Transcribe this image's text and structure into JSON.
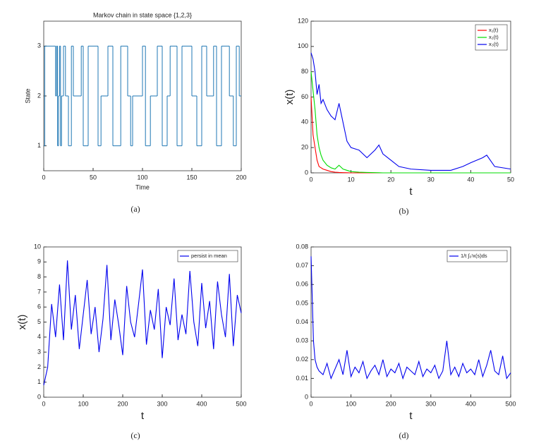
{
  "chart_data": [
    {
      "type": "line",
      "step": true,
      "title": "Markov chain in state space {1,2,3}",
      "xlabel": "Time",
      "ylabel": "State",
      "caption": "(a)",
      "x": [
        0,
        1,
        2,
        12,
        13,
        14,
        15,
        16,
        17,
        18,
        20,
        22,
        25,
        28,
        30,
        38,
        40,
        45,
        55,
        58,
        65,
        70,
        78,
        85,
        88,
        90,
        100,
        103,
        108,
        115,
        120,
        125,
        128,
        135,
        140,
        150,
        155,
        160,
        165,
        172,
        175,
        180,
        188,
        192,
        195,
        198,
        200
      ],
      "series": [
        {
          "color": "#1f77b4",
          "values": [
            1,
            3,
            3,
            2,
            3,
            1,
            2,
            3,
            1,
            2,
            3,
            2,
            1,
            3,
            2,
            3,
            1,
            3,
            1,
            2,
            3,
            1,
            3,
            2,
            1,
            2,
            3,
            1,
            2,
            3,
            1,
            2,
            3,
            1,
            3,
            2,
            1,
            3,
            2,
            3,
            1,
            3,
            2,
            1,
            3,
            2,
            2
          ]
        }
      ],
      "xlim": [
        0,
        200
      ],
      "xticks": [
        0,
        50,
        100,
        150,
        200
      ],
      "ylim": [
        0.5,
        3.5
      ],
      "yticks": [
        1,
        2,
        3
      ]
    },
    {
      "type": "line",
      "xlabel": "t",
      "ylabel": "x(t)",
      "caption": "(b)",
      "legend": "upper right",
      "x": [
        0,
        0.5,
        1,
        1.5,
        2,
        2.5,
        3,
        4,
        5,
        6,
        7,
        8,
        9,
        10,
        12,
        14,
        16,
        17,
        18,
        20,
        22,
        25,
        30,
        35,
        38,
        40,
        43,
        44,
        46,
        50
      ],
      "series": [
        {
          "name": "x₁(t)",
          "color": "#ff0000",
          "values": [
            60,
            30,
            20,
            10,
            5,
            4,
            3,
            2,
            1,
            0.5,
            0.3,
            0.2,
            0.1,
            0,
            0,
            0,
            0,
            0,
            0,
            0,
            0,
            0,
            0,
            0,
            0,
            0,
            0,
            0,
            0,
            0
          ]
        },
        {
          "name": "x₂(t)",
          "color": "#00dd00",
          "values": [
            80,
            65,
            50,
            30,
            20,
            14,
            10,
            6,
            4,
            3,
            6,
            3,
            2,
            1,
            0.5,
            0.3,
            0.2,
            0.1,
            0,
            0,
            0,
            0,
            0,
            0,
            0,
            0,
            0,
            0,
            0,
            0
          ]
        },
        {
          "name": "x₃(t)",
          "color": "#0000ee",
          "values": [
            95,
            90,
            80,
            62,
            70,
            55,
            58,
            50,
            45,
            42,
            55,
            40,
            25,
            20,
            18,
            12,
            18,
            22,
            15,
            10,
            5,
            3,
            2,
            2,
            5,
            8,
            12,
            14,
            5,
            3
          ]
        }
      ],
      "xlim": [
        0,
        50
      ],
      "xticks": [
        0,
        10,
        20,
        30,
        40,
        50
      ],
      "ylim": [
        0,
        120
      ],
      "yticks": [
        0,
        20,
        40,
        60,
        80,
        100,
        120
      ]
    },
    {
      "type": "line",
      "xlabel": "t",
      "ylabel": "x(t)",
      "caption": "(c)",
      "legend": "upper right",
      "x": [
        0,
        10,
        20,
        30,
        40,
        50,
        60,
        70,
        80,
        90,
        100,
        110,
        120,
        130,
        140,
        150,
        160,
        170,
        180,
        190,
        200,
        210,
        220,
        230,
        240,
        250,
        260,
        270,
        280,
        290,
        300,
        310,
        320,
        330,
        340,
        350,
        360,
        370,
        380,
        390,
        400,
        410,
        420,
        430,
        440,
        450,
        460,
        470,
        480,
        490,
        500
      ],
      "series": [
        {
          "name": "persist in mean",
          "color": "#0000ee",
          "values": [
            0.8,
            2,
            6.2,
            4,
            7.5,
            3.8,
            9.1,
            4.5,
            6.8,
            3.2,
            5.5,
            7.8,
            4.2,
            6,
            3,
            5.2,
            8.8,
            3.8,
            6.5,
            4.8,
            2.8,
            7.4,
            5,
            4,
            6.2,
            8.5,
            3.5,
            5.8,
            4.5,
            7.2,
            2.6,
            6,
            4.8,
            7.9,
            3.8,
            5.5,
            4.2,
            8.4,
            5,
            3.4,
            7.6,
            4.6,
            6.4,
            3.2,
            7.7,
            5.5,
            4,
            8.2,
            3.4,
            6.8,
            5.6
          ]
        }
      ],
      "xlim": [
        0,
        500
      ],
      "xticks": [
        0,
        100,
        200,
        300,
        400,
        500
      ],
      "ylim": [
        0,
        10
      ],
      "yticks": [
        0,
        1,
        2,
        3,
        4,
        5,
        6,
        7,
        8,
        9,
        10
      ]
    },
    {
      "type": "line",
      "xlabel": "t",
      "caption": "(d)",
      "legend": "upper right",
      "x": [
        0,
        2,
        4,
        6,
        8,
        10,
        15,
        20,
        30,
        40,
        50,
        60,
        70,
        80,
        90,
        100,
        110,
        120,
        130,
        140,
        150,
        160,
        170,
        180,
        190,
        200,
        210,
        220,
        230,
        240,
        250,
        260,
        270,
        280,
        290,
        300,
        310,
        320,
        330,
        340,
        350,
        360,
        370,
        380,
        390,
        400,
        410,
        420,
        430,
        440,
        450,
        460,
        470,
        480,
        490,
        500
      ],
      "series": [
        {
          "name": "1/t ∫₀ᵗx(s)ds",
          "color": "#0000ee",
          "values": [
            0.075,
            0.06,
            0.045,
            0.03,
            0.025,
            0.02,
            0.016,
            0.014,
            0.012,
            0.018,
            0.01,
            0.015,
            0.02,
            0.012,
            0.025,
            0.011,
            0.016,
            0.013,
            0.019,
            0.01,
            0.014,
            0.017,
            0.012,
            0.02,
            0.011,
            0.015,
            0.013,
            0.018,
            0.01,
            0.016,
            0.014,
            0.012,
            0.019,
            0.011,
            0.015,
            0.013,
            0.017,
            0.01,
            0.014,
            0.03,
            0.012,
            0.016,
            0.011,
            0.018,
            0.013,
            0.015,
            0.012,
            0.02,
            0.011,
            0.017,
            0.025,
            0.014,
            0.012,
            0.022,
            0.01,
            0.013
          ]
        }
      ],
      "xlim": [
        0,
        500
      ],
      "xticks": [
        0,
        100,
        200,
        300,
        400,
        500
      ],
      "ylim": [
        0,
        0.08
      ],
      "yticks": [
        0,
        0.01,
        0.02,
        0.03,
        0.04,
        0.05,
        0.06,
        0.07,
        0.08
      ]
    }
  ]
}
